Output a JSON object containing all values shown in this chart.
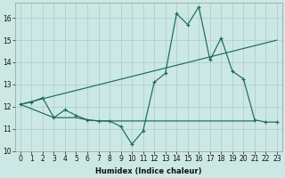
{
  "xlabel": "Humidex (Indice chaleur)",
  "xlim_min": -0.5,
  "xlim_max": 23.5,
  "ylim_min": 10,
  "ylim_max": 16.7,
  "yticks": [
    10,
    11,
    12,
    13,
    14,
    15,
    16
  ],
  "xticks": [
    0,
    1,
    2,
    3,
    4,
    5,
    6,
    7,
    8,
    9,
    10,
    11,
    12,
    13,
    14,
    15,
    16,
    17,
    18,
    19,
    20,
    21,
    22,
    23
  ],
  "bg_color": "#cce8e4",
  "grid_color": "#aaccc8",
  "line_color": "#1a6b5a",
  "curve1_x": [
    0,
    1,
    2,
    3,
    4,
    5,
    6,
    7,
    8,
    9,
    10,
    11,
    12,
    13,
    14,
    15,
    16,
    17,
    18,
    19,
    20,
    21,
    22,
    23
  ],
  "curve1_y": [
    12.1,
    12.2,
    12.4,
    11.5,
    11.85,
    11.6,
    11.4,
    11.35,
    11.35,
    11.1,
    10.3,
    10.9,
    13.1,
    13.5,
    16.2,
    15.7,
    16.5,
    14.1,
    15.1,
    13.6,
    13.25,
    11.4,
    11.3,
    11.3
  ],
  "curve2_x": [
    0,
    23
  ],
  "curve2_y": [
    12.1,
    15.0
  ],
  "curve3_x": [
    0,
    3,
    4,
    5,
    6,
    7,
    8,
    9,
    10,
    11,
    12,
    13,
    14,
    15,
    16,
    17,
    18,
    19,
    20,
    21
  ],
  "curve3_y": [
    12.1,
    11.5,
    11.5,
    11.5,
    11.4,
    11.35,
    11.35,
    11.35,
    11.35,
    11.35,
    11.35,
    11.35,
    11.35,
    11.35,
    11.35,
    11.35,
    11.35,
    11.35,
    11.35,
    11.35
  ]
}
